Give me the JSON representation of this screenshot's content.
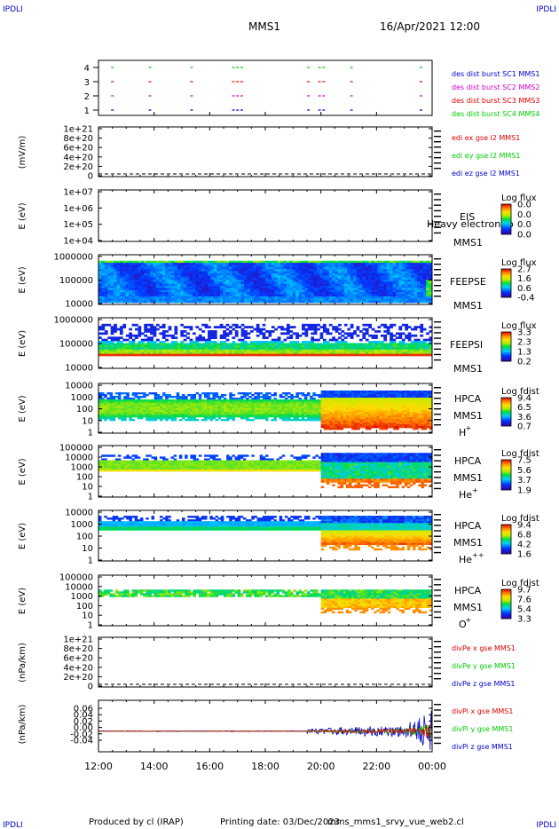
{
  "corners": {
    "tl": "IPDLI",
    "tr": "IPDLI",
    "bl": "IPDLI",
    "br": "IPDLI"
  },
  "header": {
    "spacecraft": "MMS1",
    "date": "16/Apr/2021 12:00"
  },
  "footer": {
    "produced_by": "Produced by cl (IRAP)",
    "printing_date": "Printing date: 03/Dec/2023",
    "filename": "mms_mms1_srvy_vue_web2.cl"
  },
  "time_axis": {
    "ticks": [
      "12:00",
      "14:00",
      "16:00",
      "18:00",
      "20:00",
      "22:00",
      "00:00"
    ]
  },
  "chart_data": [
    {
      "type": "scatter",
      "ytick_labels": [
        "1",
        "2",
        "3",
        "4"
      ],
      "legend": [
        {
          "label": "des dist burst SC1 MMS1",
          "color": "#0000cc"
        },
        {
          "label": "des dist burst SC2 MMS2",
          "color": "#cc00cc"
        },
        {
          "label": "des dist burst SC3 MMS3",
          "color": "#dd0000"
        },
        {
          "label": "des dist burst SC4 MMS4",
          "color": "#00cc00"
        }
      ],
      "x_hours": [
        12.5,
        13.85,
        15.35,
        16.85,
        17.0,
        17.15,
        19.55,
        19.95,
        20.1,
        21.1,
        23.6
      ],
      "series": [
        {
          "y": 1,
          "values": [
            12.5,
            13.85,
            15.35,
            16.85,
            17.0,
            17.15,
            19.55,
            19.95,
            20.1,
            21.1,
            23.6
          ]
        },
        {
          "y": 2,
          "values": [
            12.5,
            13.85,
            15.35,
            16.85,
            17.0,
            17.15,
            19.55,
            19.95,
            20.1,
            21.1,
            23.6
          ]
        },
        {
          "y": 3,
          "values": [
            12.5,
            13.85,
            15.35,
            16.85,
            17.0,
            17.15,
            19.55,
            19.95,
            20.1,
            21.1,
            23.6
          ]
        },
        {
          "y": 4,
          "values": [
            12.5,
            13.85,
            15.35,
            16.85,
            17.0,
            17.15,
            19.55,
            19.95,
            20.1,
            21.1,
            23.6
          ]
        }
      ]
    },
    {
      "type": "line",
      "ylabel": "(mV/m)",
      "ytick_labels": [
        "1e+21",
        "8e+20",
        "6e+20",
        "4e+20",
        "2e+20",
        "0"
      ],
      "legend": [
        {
          "label": "edi ex gse l2 MMS1",
          "color": "#dd0000"
        },
        {
          "label": "edi ey gse l2 MMS1",
          "color": "#00cc00"
        },
        {
          "label": "edi ez gse l2 MMS1",
          "color": "#0000cc"
        }
      ]
    },
    {
      "type": "heatmap",
      "ylabel": "E (eV)",
      "ytick_labels": [
        "1e+07",
        "1e+06",
        "1e+05",
        "1e+04"
      ],
      "instrument": [
        "EIS",
        "MMS1"
      ],
      "overlay": "Heavy electron to",
      "colorbar_title": "Log flux",
      "colorbar_ticks": [
        "0.0",
        "0.0",
        "0.0",
        "0.0"
      ]
    },
    {
      "type": "heatmap",
      "ylabel": "E (eV)",
      "ytick_labels": [
        "1000000",
        "100000",
        "10000"
      ],
      "instrument": [
        "FEEPSE",
        "MMS1"
      ],
      "colorbar_title": "Log flux",
      "colorbar_ticks": [
        "2.7",
        "1.6",
        "0.6",
        "-0.4"
      ]
    },
    {
      "type": "heatmap",
      "ylabel": "E (eV)",
      "ytick_labels": [
        "1000000",
        "100000",
        "10000"
      ],
      "instrument": [
        "FEEPSI",
        "MMS1"
      ],
      "colorbar_title": "Log flux",
      "colorbar_ticks": [
        "3.3",
        "2.3",
        "1.3",
        "0.2"
      ]
    },
    {
      "type": "heatmap",
      "ylabel": "E (eV)",
      "ytick_labels": [
        "10000",
        "1000",
        "100",
        "10",
        "1"
      ],
      "instrument": [
        "HPCA",
        "MMS1",
        "H",
        "+"
      ],
      "colorbar_title": "Log fdist",
      "colorbar_ticks": [
        "9.4",
        "6.5",
        "3.6",
        "0.7"
      ]
    },
    {
      "type": "heatmap",
      "ylabel": "E (eV)",
      "ytick_labels": [
        "100000",
        "10000",
        "1000",
        "100",
        "10",
        "1"
      ],
      "instrument": [
        "HPCA",
        "MMS1",
        "He",
        "+"
      ],
      "colorbar_title": "Log fdist",
      "colorbar_ticks": [
        "7.5",
        "5.6",
        "3.7",
        "1.9"
      ]
    },
    {
      "type": "heatmap",
      "ylabel": "E (eV)",
      "ytick_labels": [
        "10000",
        "1000",
        "100",
        "10",
        "1"
      ],
      "instrument": [
        "HPCA",
        "MMS1",
        "He",
        "++"
      ],
      "colorbar_title": "Log fdist",
      "colorbar_ticks": [
        "9.4",
        "6.8",
        "4.2",
        "1.6"
      ]
    },
    {
      "type": "heatmap",
      "ylabel": "E (eV)",
      "ytick_labels": [
        "100000",
        "10000",
        "1000",
        "100",
        "10",
        "1"
      ],
      "instrument": [
        "HPCA",
        "MMS1",
        "O",
        "+"
      ],
      "colorbar_title": "Log fdist",
      "colorbar_ticks": [
        "9.7",
        "7.6",
        "5.4",
        "3.3"
      ]
    },
    {
      "type": "line",
      "ylabel": "(nPa/km)",
      "ytick_labels": [
        "1e+21",
        "8e+20",
        "6e+20",
        "4e+20",
        "2e+20",
        "0"
      ],
      "legend": [
        {
          "label": "divPe x gse MMS1",
          "color": "#dd0000"
        },
        {
          "label": "divPe y gse MMS1",
          "color": "#00cc00"
        },
        {
          "label": "divPe z gse MMS1",
          "color": "#0000cc"
        }
      ]
    },
    {
      "type": "line",
      "ylabel": "(nPa/km)",
      "ytick_labels": [
        "0.06",
        "0.04",
        "0.02",
        "0.00",
        "-0.02",
        "-0.04"
      ],
      "legend": [
        {
          "label": "divPi x gse MMS1",
          "color": "#dd0000"
        },
        {
          "label": "divPi y gse MMS1",
          "color": "#00cc00"
        },
        {
          "label": "divPi z gse MMS1",
          "color": "#0000cc"
        }
      ]
    }
  ]
}
